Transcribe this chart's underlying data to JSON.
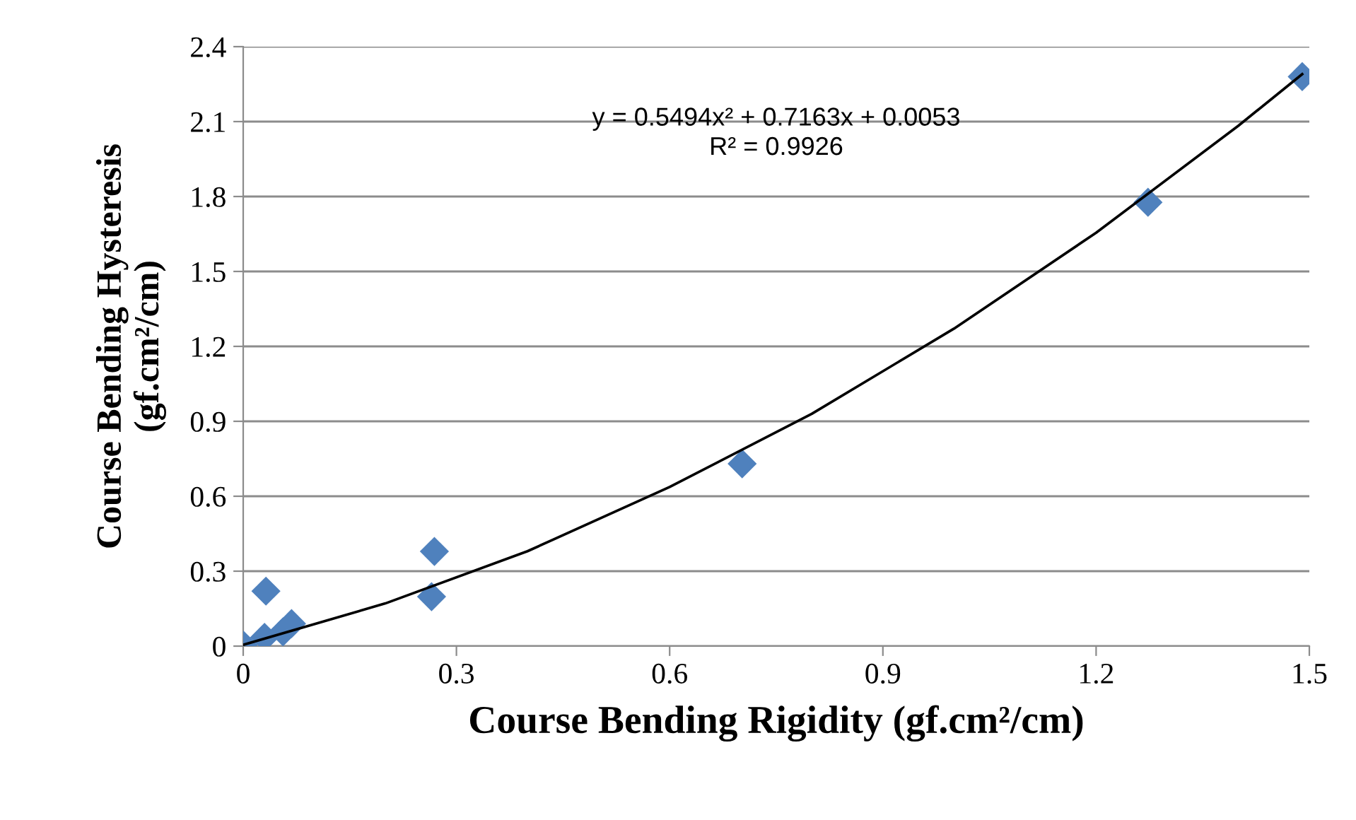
{
  "chart_data": {
    "type": "scatter",
    "xlabel": "Course Bending Rigidity (gf.cm²/cm)",
    "ylabel": "Course Bending Hysteresis\n(gf.cm²/cm)",
    "xlim": [
      0,
      1.5
    ],
    "xticks": [
      0,
      0.3,
      0.6,
      0.9,
      1.2,
      1.5
    ],
    "ylim": [
      0,
      2.4
    ],
    "yticks": [
      0,
      0.3,
      0.6,
      0.9,
      1.2,
      1.5,
      1.8,
      2.1,
      2.4
    ],
    "grid": "y",
    "legend": false,
    "marker": "diamond",
    "series": [
      {
        "color": "#4f81bd",
        "x": [
          0.0,
          0.03,
          0.056,
          0.032,
          0.068,
          0.265,
          0.269,
          0.702,
          1.273,
          1.49
        ],
        "values": [
          0.005,
          0.035,
          0.057,
          0.22,
          0.09,
          0.198,
          0.379,
          0.73,
          1.777,
          2.28
        ]
      },
      {
        "type": "line",
        "color": "#000000",
        "marker": "none",
        "x": [
          0,
          0.2,
          0.4,
          0.6,
          0.8,
          1.0,
          1.2,
          1.4,
          1.49
        ],
        "values": [
          0.005,
          0.171,
          0.38,
          0.637,
          0.93,
          1.271,
          1.655,
          2.083,
          2.29
        ]
      }
    ],
    "annotations": [
      "y = 0.5494x² + 0.7163x + 0.0053\nR² = 0.9926"
    ]
  }
}
